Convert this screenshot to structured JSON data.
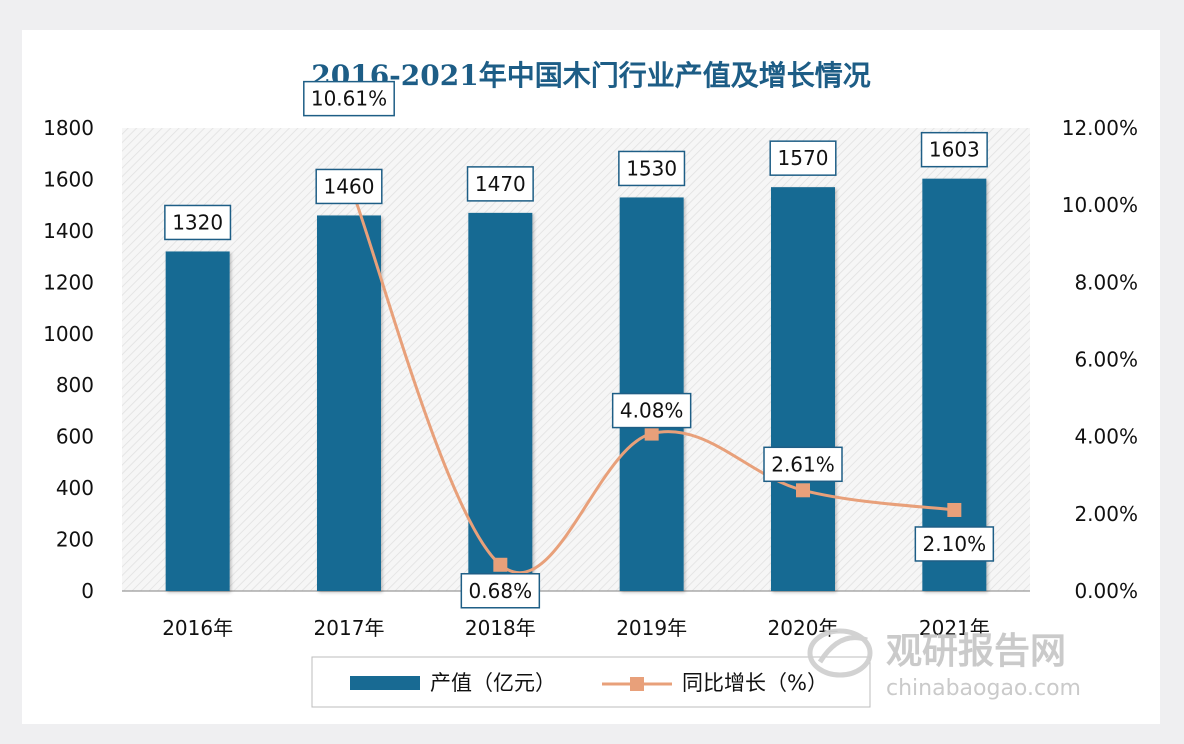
{
  "chart_data": {
    "type": "bar",
    "title": "2016-2021年中国木门行业产值及增长情况",
    "categories": [
      "2016年",
      "2017年",
      "2018年",
      "2019年",
      "2020年",
      "2021年"
    ],
    "series": [
      {
        "name": "产值（亿元）",
        "type": "bar",
        "axis": "left",
        "color": "#186a93",
        "values": [
          1320,
          1460,
          1470,
          1530,
          1570,
          1603
        ],
        "labels": [
          "1320",
          "1460",
          "1470",
          "1530",
          "1570",
          "1603"
        ]
      },
      {
        "name": "同比增长（%）",
        "type": "line",
        "axis": "right",
        "color": "#e8a07a",
        "values": [
          null,
          10.61,
          0.68,
          4.08,
          2.61,
          2.1
        ],
        "labels": [
          "",
          "10.61%",
          "0.68%",
          "4.08%",
          "2.61%",
          "2.10%"
        ]
      }
    ],
    "y_left": {
      "min": 0,
      "max": 1800,
      "ticks": [
        "0",
        "200",
        "400",
        "600",
        "800",
        "1000",
        "1200",
        "1400",
        "1600",
        "1800"
      ]
    },
    "y_right": {
      "min": 0,
      "max": 12,
      "ticks": [
        "0.00%",
        "2.00%",
        "4.00%",
        "6.00%",
        "8.00%",
        "10.00%",
        "12.00%"
      ]
    },
    "legend_position": "bottom-center"
  },
  "watermark": {
    "name": "观研报告网",
    "url": "chinabaogao.com"
  },
  "colors": {
    "bar": "#186a93",
    "line": "#e8a07a",
    "title": "#1d5d86"
  }
}
